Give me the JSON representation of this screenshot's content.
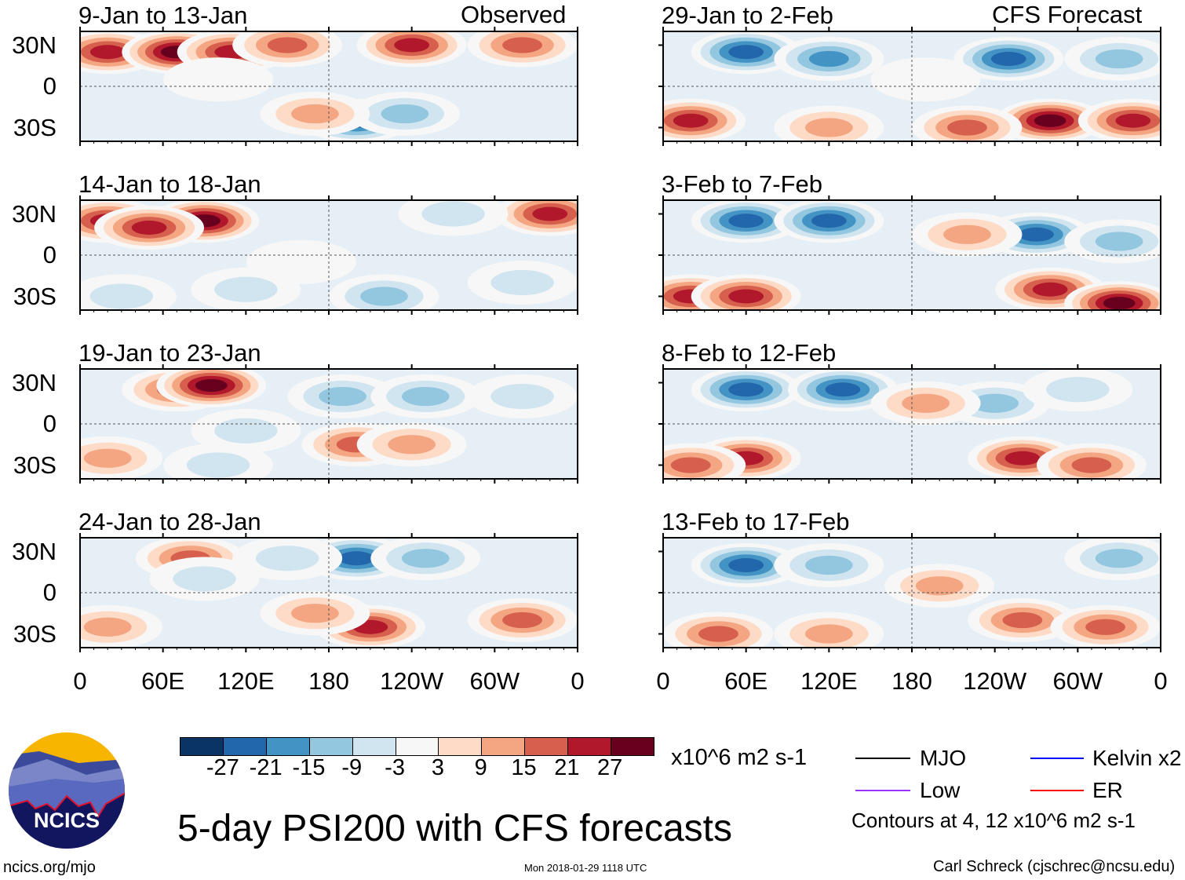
{
  "title": "5-day PSI200 with CFS forecasts",
  "left_header": "Observed",
  "right_header": "CFS Forecast",
  "lat_labels": [
    "30N",
    "0",
    "30S"
  ],
  "lon_labels": [
    "0",
    "60E",
    "120E",
    "180",
    "120W",
    "60W",
    "0"
  ],
  "colorbar": {
    "ticks": [
      "-27",
      "-21",
      "-15",
      "-9",
      "-3",
      "3",
      "9",
      "15",
      "21",
      "27"
    ],
    "colors": [
      "#0a3463",
      "#2266ab",
      "#4394c4",
      "#93c6df",
      "#d1e5f0",
      "#f7f7f7",
      "#fddbc7",
      "#f4a582",
      "#d6604d",
      "#b2182b",
      "#67001f"
    ],
    "units": "x10^6 m2 s-1"
  },
  "legend": {
    "mjo": "MJO",
    "mjo_color": "#000000",
    "kelvin": "Kelvin x2",
    "kelvin_color": "#0000ff",
    "low": "Low",
    "low_color": "#9933ff",
    "er": "ER",
    "er_color": "#ff0000",
    "contours_note": "Contours at 4, 12 x10^6 m2 s-1"
  },
  "footer": {
    "url": "ncics.org/mjo",
    "timestamp": "Mon 2018-01-29 1118 UTC",
    "author": "Carl Schreck (cjschrec@ncsu.edu)"
  },
  "logo_text": "NCICS",
  "chart_data": {
    "type": "heatmap",
    "variable": "200-hPa streamfunction anomaly (x10^6 m2 s-1)",
    "xlim": [
      0,
      360
    ],
    "ylim": [
      -40,
      40
    ],
    "panels": [
      {
        "title": "9-Jan to 13-Jan",
        "source": "Observed",
        "anomalies": [
          [
            20,
            25,
            21
          ],
          [
            70,
            25,
            27
          ],
          [
            110,
            25,
            21
          ],
          [
            150,
            30,
            15
          ],
          [
            240,
            30,
            21
          ],
          [
            320,
            30,
            15
          ],
          [
            200,
            -25,
            -27
          ],
          [
            235,
            -20,
            -15
          ],
          [
            100,
            5,
            -3
          ],
          [
            170,
            -20,
            9
          ]
        ]
      },
      {
        "title": "14-Jan to 18-Jan",
        "source": "Observed",
        "anomalies": [
          [
            20,
            25,
            21
          ],
          [
            90,
            25,
            27
          ],
          [
            50,
            20,
            21
          ],
          [
            340,
            30,
            21
          ],
          [
            270,
            30,
            -9
          ],
          [
            160,
            -5,
            -3
          ],
          [
            220,
            -30,
            -15
          ],
          [
            120,
            -25,
            -9
          ],
          [
            30,
            -30,
            -9
          ],
          [
            320,
            -20,
            -9
          ]
        ]
      },
      {
        "title": "19-Jan to 23-Jan",
        "source": "Observed",
        "anomalies": [
          [
            70,
            25,
            15
          ],
          [
            95,
            28,
            27
          ],
          [
            120,
            -5,
            -9
          ],
          [
            200,
            -15,
            15
          ],
          [
            240,
            -15,
            9
          ],
          [
            190,
            20,
            -15
          ],
          [
            250,
            20,
            -15
          ],
          [
            320,
            20,
            -9
          ],
          [
            20,
            -25,
            9
          ],
          [
            100,
            -30,
            -9
          ]
        ]
      },
      {
        "title": "24-Jan to 28-Jan",
        "source": "Observed",
        "anomalies": [
          [
            80,
            25,
            15
          ],
          [
            200,
            25,
            -27
          ],
          [
            150,
            25,
            -9
          ],
          [
            250,
            25,
            -15
          ],
          [
            210,
            -25,
            21
          ],
          [
            170,
            -15,
            9
          ],
          [
            320,
            -20,
            15
          ],
          [
            20,
            -25,
            9
          ],
          [
            90,
            10,
            -9
          ]
        ]
      },
      {
        "title": "29-Jan to 2-Feb",
        "source": "CFS Forecast",
        "anomalies": [
          [
            60,
            25,
            -27
          ],
          [
            120,
            20,
            -21
          ],
          [
            250,
            20,
            -27
          ],
          [
            330,
            20,
            -15
          ],
          [
            20,
            -25,
            21
          ],
          [
            280,
            -25,
            27
          ],
          [
            340,
            -25,
            21
          ],
          [
            120,
            -30,
            9
          ],
          [
            220,
            -30,
            15
          ],
          [
            190,
            5,
            -3
          ]
        ]
      },
      {
        "title": "3-Feb to 7-Feb",
        "source": "CFS Forecast",
        "anomalies": [
          [
            60,
            25,
            -27
          ],
          [
            120,
            25,
            -27
          ],
          [
            270,
            15,
            -27
          ],
          [
            330,
            10,
            -15
          ],
          [
            20,
            -30,
            21
          ],
          [
            60,
            -30,
            21
          ],
          [
            280,
            -25,
            21
          ],
          [
            330,
            -35,
            27
          ],
          [
            220,
            15,
            9
          ]
        ]
      },
      {
        "title": "8-Feb to 12-Feb",
        "source": "CFS Forecast",
        "anomalies": [
          [
            60,
            25,
            -27
          ],
          [
            130,
            25,
            -27
          ],
          [
            240,
            15,
            -15
          ],
          [
            300,
            25,
            -9
          ],
          [
            60,
            -25,
            21
          ],
          [
            20,
            -30,
            15
          ],
          [
            260,
            -25,
            21
          ],
          [
            310,
            -30,
            15
          ],
          [
            190,
            15,
            9
          ]
        ]
      },
      {
        "title": "13-Feb to 17-Feb",
        "source": "CFS Forecast",
        "anomalies": [
          [
            60,
            20,
            -27
          ],
          [
            120,
            20,
            -15
          ],
          [
            330,
            25,
            -15
          ],
          [
            200,
            5,
            9
          ],
          [
            40,
            -30,
            15
          ],
          [
            260,
            -20,
            15
          ],
          [
            320,
            -25,
            15
          ],
          [
            120,
            -30,
            9
          ]
        ]
      }
    ]
  }
}
